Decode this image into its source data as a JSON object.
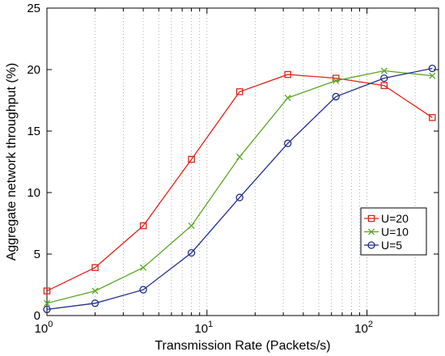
{
  "chart_data": {
    "type": "line",
    "xscale": "log",
    "xlim": [
      1,
      280
    ],
    "ylim": [
      0,
      25
    ],
    "grid": "x-only (dotted, major and minor)",
    "legend_placement": "lower-right",
    "xlabel": "Transmission Rate (Packets/s)",
    "ylabel": "Aggregate network throughput (%)",
    "x_ticks": [
      {
        "base": "10",
        "exp": "0",
        "value": 1
      },
      {
        "base": "10",
        "exp": "1",
        "value": 10
      },
      {
        "base": "10",
        "exp": "2",
        "value": 100
      }
    ],
    "y_ticks": [
      "0",
      "5",
      "10",
      "15",
      "20",
      "25"
    ],
    "x": [
      1,
      2,
      4,
      8,
      16,
      32,
      64,
      128,
      256
    ],
    "series": [
      {
        "name": "U=20",
        "color": "#e0241b",
        "marker": "square",
        "values": [
          2.0,
          3.9,
          7.3,
          12.7,
          18.2,
          19.6,
          19.3,
          18.7,
          16.1
        ]
      },
      {
        "name": "U=10",
        "color": "#5aa825",
        "marker": "x",
        "values": [
          1.0,
          2.0,
          3.9,
          7.3,
          12.9,
          17.7,
          19.1,
          19.9,
          19.5
        ]
      },
      {
        "name": "U=5",
        "color": "#1f2e8f",
        "marker": "circle",
        "values": [
          0.5,
          1.0,
          2.1,
          5.1,
          9.6,
          14.0,
          17.8,
          19.3,
          20.1
        ]
      }
    ]
  }
}
